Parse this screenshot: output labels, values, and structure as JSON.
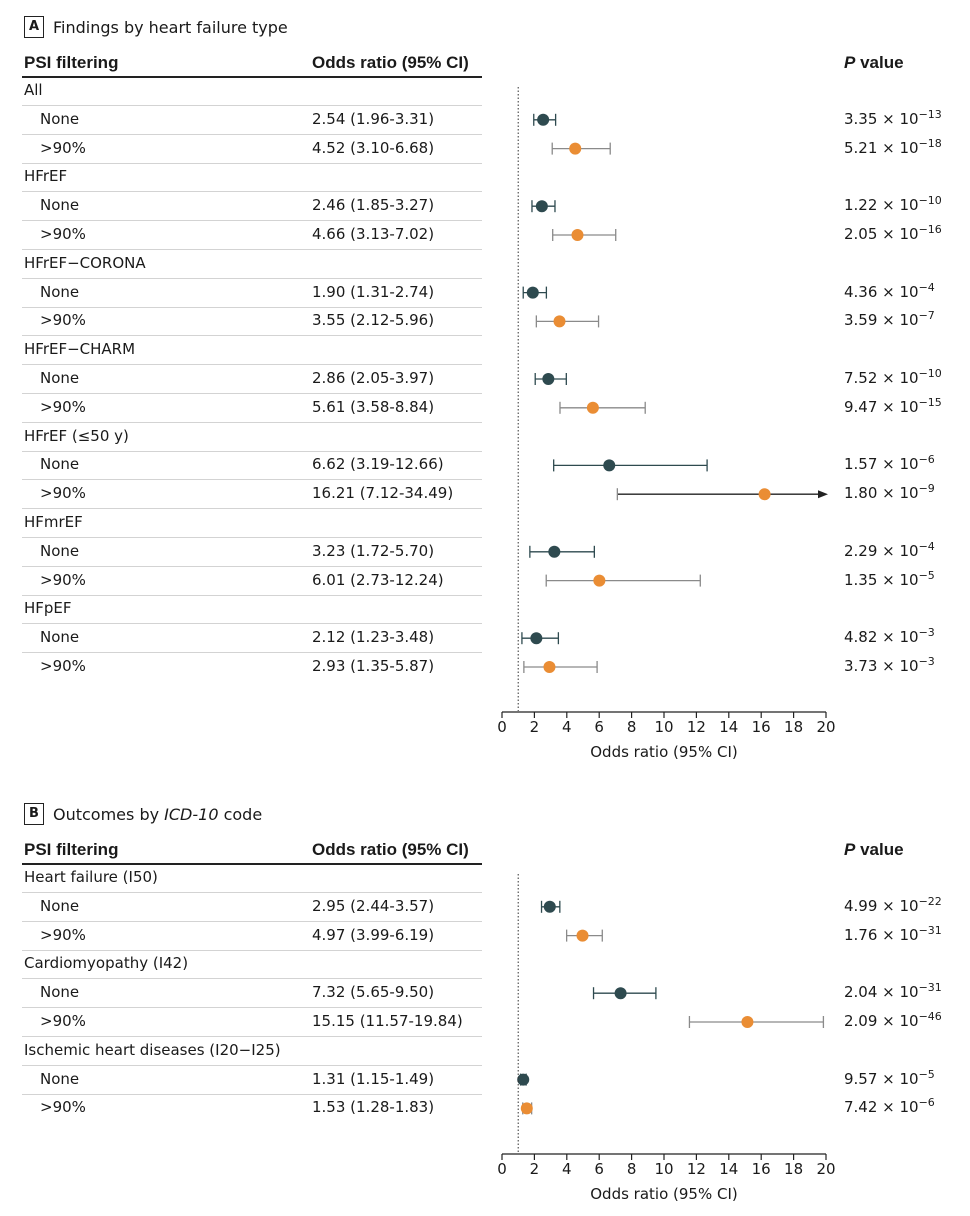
{
  "colors": {
    "none": "#2e4a4f",
    "filtered": "#ea8d34",
    "ci_none": "#2e4a4f",
    "ci_filtered": "#8a8a8a"
  },
  "axis": {
    "ticks": [
      "0",
      "2",
      "4",
      "6",
      "8",
      "10",
      "12",
      "14",
      "16",
      "18",
      "20"
    ],
    "label": "Odds ratio (95% CI)",
    "xlim": [
      0,
      20
    ],
    "reference": 1
  },
  "headers": {
    "col1": "PSI filtering",
    "col2": "Odds ratio (95% CI)",
    "col3_italic": "P",
    "col3_rest": " value"
  },
  "panels": [
    {
      "letter": "A",
      "title_pre": "Findings by heart failure type",
      "title_italic": "",
      "title_post": "",
      "groups": [
        {
          "label": "All",
          "rows": [
            {
              "filter": "None",
              "or_text": "2.54 (1.96-3.31)",
              "p_mant": "3.35 × 10",
              "p_exp": "−13"
            },
            {
              "filter": ">90%",
              "or_text": "4.52 (3.10-6.68)",
              "p_mant": "5.21 × 10",
              "p_exp": "−18"
            }
          ]
        },
        {
          "label": "HFrEF",
          "rows": [
            {
              "filter": "None",
              "or_text": "2.46 (1.85-3.27)",
              "p_mant": "1.22 × 10",
              "p_exp": "−10"
            },
            {
              "filter": ">90%",
              "or_text": "4.66 (3.13-7.02)",
              "p_mant": "2.05 × 10",
              "p_exp": "−16"
            }
          ]
        },
        {
          "label": "HFrEF−CORONA",
          "rows": [
            {
              "filter": "None",
              "or_text": "1.90 (1.31-2.74)",
              "p_mant": "4.36 × 10",
              "p_exp": "−4"
            },
            {
              "filter": ">90%",
              "or_text": "3.55 (2.12-5.96)",
              "p_mant": "3.59 × 10",
              "p_exp": "−7"
            }
          ]
        },
        {
          "label": "HFrEF−CHARM",
          "rows": [
            {
              "filter": "None",
              "or_text": "2.86 (2.05-3.97)",
              "p_mant": "7.52 × 10",
              "p_exp": "−10"
            },
            {
              "filter": ">90%",
              "or_text": "5.61 (3.58-8.84)",
              "p_mant": "9.47 × 10",
              "p_exp": "−15"
            }
          ]
        },
        {
          "label": "HFrEF (≤50 y)",
          "rows": [
            {
              "filter": "None",
              "or_text": "6.62 (3.19-12.66)",
              "p_mant": "1.57 × 10",
              "p_exp": "−6"
            },
            {
              "filter": ">90%",
              "or_text": "16.21 (7.12-34.49)",
              "p_mant": "1.80 × 10",
              "p_exp": "−9"
            }
          ]
        },
        {
          "label": "HFmrEF",
          "rows": [
            {
              "filter": "None",
              "or_text": "3.23 (1.72-5.70)",
              "p_mant": "2.29 × 10",
              "p_exp": "−4"
            },
            {
              "filter": ">90%",
              "or_text": "6.01 (2.73-12.24)",
              "p_mant": "1.35 × 10",
              "p_exp": "−5"
            }
          ]
        },
        {
          "label": "HFpEF",
          "rows": [
            {
              "filter": "None",
              "or_text": "2.12 (1.23-3.48)",
              "p_mant": "4.82 × 10",
              "p_exp": "−3"
            },
            {
              "filter": ">90%",
              "or_text": "2.93 (1.35-5.87)",
              "p_mant": "3.73 × 10",
              "p_exp": "−3"
            }
          ]
        }
      ]
    },
    {
      "letter": "B",
      "title_pre": "Outcomes by ",
      "title_italic": "ICD-10",
      "title_post": " code",
      "groups": [
        {
          "label": "Heart failure (I50)",
          "rows": [
            {
              "filter": "None",
              "or_text": "2.95 (2.44-3.57)",
              "p_mant": "4.99 × 10",
              "p_exp": "−22"
            },
            {
              "filter": ">90%",
              "or_text": "4.97 (3.99-6.19)",
              "p_mant": "1.76 × 10",
              "p_exp": "−31"
            }
          ]
        },
        {
          "label": "Cardiomyopathy (I42)",
          "rows": [
            {
              "filter": "None",
              "or_text": "7.32 (5.65-9.50)",
              "p_mant": "2.04 × 10",
              "p_exp": "−31"
            },
            {
              "filter": ">90%",
              "or_text": "15.15 (11.57-19.84)",
              "p_mant": "2.09 × 10",
              "p_exp": "−46"
            }
          ]
        },
        {
          "label": "Ischemic heart diseases (I20−I25)",
          "rows": [
            {
              "filter": "None",
              "or_text": "1.31 (1.15-1.49)",
              "p_mant": "9.57 × 10",
              "p_exp": "−5"
            },
            {
              "filter": ">90%",
              "or_text": "1.53 (1.28-1.83)",
              "p_mant": "7.42 × 10",
              "p_exp": "−6"
            }
          ]
        }
      ]
    }
  ],
  "chart_data": [
    {
      "type": "scatter",
      "title": "Findings by heart failure type",
      "xlabel": "Odds ratio (95% CI)",
      "xlim": [
        0,
        20
      ],
      "reference_line": 1,
      "series": [
        {
          "name": "None",
          "points": [
            {
              "group": "All",
              "or": 2.54,
              "lo": 1.96,
              "hi": 3.31
            },
            {
              "group": "HFrEF",
              "or": 2.46,
              "lo": 1.85,
              "hi": 3.27
            },
            {
              "group": "HFrEF−CORONA",
              "or": 1.9,
              "lo": 1.31,
              "hi": 2.74
            },
            {
              "group": "HFrEF−CHARM",
              "or": 2.86,
              "lo": 2.05,
              "hi": 3.97
            },
            {
              "group": "HFrEF (≤50 y)",
              "or": 6.62,
              "lo": 3.19,
              "hi": 12.66
            },
            {
              "group": "HFmrEF",
              "or": 3.23,
              "lo": 1.72,
              "hi": 5.7
            },
            {
              "group": "HFpEF",
              "or": 2.12,
              "lo": 1.23,
              "hi": 3.48
            }
          ]
        },
        {
          "name": ">90%",
          "points": [
            {
              "group": "All",
              "or": 4.52,
              "lo": 3.1,
              "hi": 6.68
            },
            {
              "group": "HFrEF",
              "or": 4.66,
              "lo": 3.13,
              "hi": 7.02
            },
            {
              "group": "HFrEF−CORONA",
              "or": 3.55,
              "lo": 2.12,
              "hi": 5.96
            },
            {
              "group": "HFrEF−CHARM",
              "or": 5.61,
              "lo": 3.58,
              "hi": 8.84
            },
            {
              "group": "HFrEF (≤50 y)",
              "or": 16.21,
              "lo": 7.12,
              "hi": 34.49
            },
            {
              "group": "HFmrEF",
              "or": 6.01,
              "lo": 2.73,
              "hi": 12.24
            },
            {
              "group": "HFpEF",
              "or": 2.93,
              "lo": 1.35,
              "hi": 5.87
            }
          ]
        }
      ]
    },
    {
      "type": "scatter",
      "title": "Outcomes by ICD-10 code",
      "xlabel": "Odds ratio (95% CI)",
      "xlim": [
        0,
        20
      ],
      "reference_line": 1,
      "series": [
        {
          "name": "None",
          "points": [
            {
              "group": "Heart failure (I50)",
              "or": 2.95,
              "lo": 2.44,
              "hi": 3.57
            },
            {
              "group": "Cardiomyopathy (I42)",
              "or": 7.32,
              "lo": 5.65,
              "hi": 9.5
            },
            {
              "group": "Ischemic heart diseases (I20−I25)",
              "or": 1.31,
              "lo": 1.15,
              "hi": 1.49
            }
          ]
        },
        {
          "name": ">90%",
          "points": [
            {
              "group": "Heart failure (I50)",
              "or": 4.97,
              "lo": 3.99,
              "hi": 6.19
            },
            {
              "group": "Cardiomyopathy (I42)",
              "or": 15.15,
              "lo": 11.57,
              "hi": 19.84
            },
            {
              "group": "Ischemic heart diseases (I20−I25)",
              "or": 1.53,
              "lo": 1.28,
              "hi": 1.83
            }
          ]
        }
      ]
    }
  ]
}
